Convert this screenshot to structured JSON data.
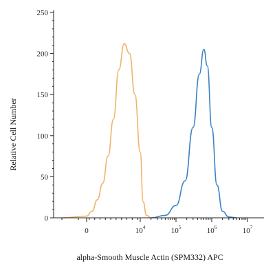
{
  "chart_data": {
    "type": "area",
    "xlabel": "alpha-Smooth Muscle Actin (SPM332) APC",
    "ylabel": "Relative Cell Number",
    "ylim": [
      0,
      250
    ],
    "y_ticks": [
      "0",
      "50",
      "100",
      "150",
      "200",
      "250"
    ],
    "x_ticks": [
      {
        "base": "0",
        "exp": ""
      },
      {
        "base": "10",
        "exp": "4"
      },
      {
        "base": "10",
        "exp": "5"
      },
      {
        "base": "10",
        "exp": "6"
      },
      {
        "base": "10",
        "exp": "7"
      }
    ],
    "x_scale": "biexponential",
    "grid": false,
    "series": [
      {
        "color": "#f0b36a",
        "points": [
          [
            -1500,
            0
          ],
          [
            0,
            2
          ],
          [
            1000,
            8
          ],
          [
            2000,
            22
          ],
          [
            3000,
            42
          ],
          [
            4000,
            75
          ],
          [
            5000,
            120
          ],
          [
            6000,
            180
          ],
          [
            7000,
            212
          ],
          [
            8000,
            200
          ],
          [
            9000,
            150
          ],
          [
            10000,
            80
          ],
          [
            12000,
            20
          ],
          [
            15000,
            3
          ],
          [
            20000,
            0
          ]
        ]
      },
      {
        "color": "#3b82c4",
        "points": [
          [
            20000,
            0
          ],
          [
            50000,
            3
          ],
          [
            100000,
            15
          ],
          [
            180000,
            45
          ],
          [
            300000,
            110
          ],
          [
            450000,
            175
          ],
          [
            600000,
            205
          ],
          [
            750000,
            185
          ],
          [
            1000000,
            110
          ],
          [
            1400000,
            40
          ],
          [
            2000000,
            8
          ],
          [
            3000000,
            1
          ],
          [
            5000000,
            0
          ]
        ]
      }
    ]
  }
}
